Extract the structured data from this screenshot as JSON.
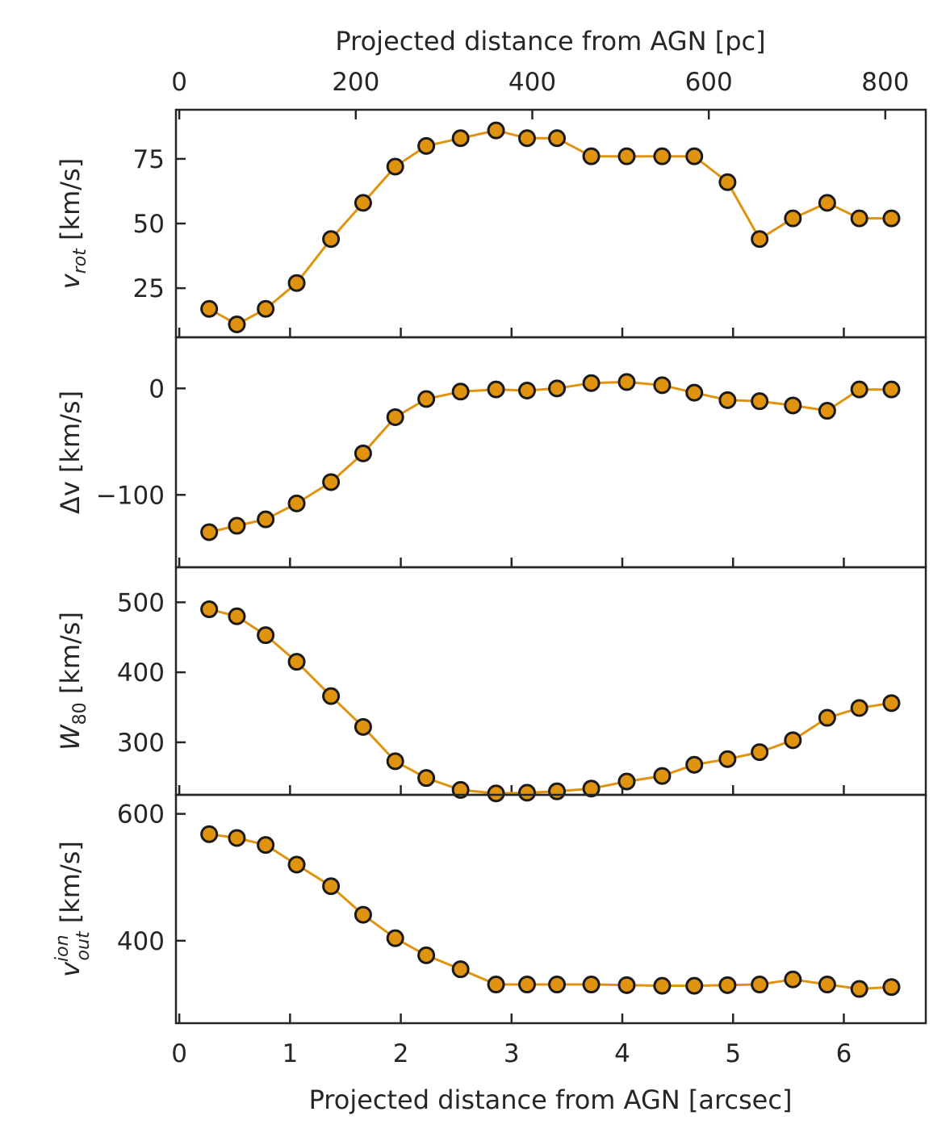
{
  "chart_data": {
    "type": "line",
    "colors": {
      "line": "#e0930f",
      "marker_fill": "#e0930f",
      "marker_edge": "#1a1a1a",
      "axes": "#262626"
    },
    "x_arcsec": [
      0.27,
      0.52,
      0.78,
      1.06,
      1.37,
      1.66,
      1.95,
      2.23,
      2.54,
      2.86,
      3.14,
      3.41,
      3.72,
      4.04,
      4.36,
      4.65,
      4.95,
      5.24,
      5.54,
      5.85,
      6.14,
      6.43
    ],
    "top_axis": {
      "label": "Projected distance from AGN [pc]",
      "ticks": [
        0,
        200,
        400,
        600,
        800
      ],
      "tick_labels": [
        "0",
        "200",
        "400",
        "600",
        "800"
      ],
      "pc_per_arcsec": 125.5
    },
    "bottom_axis": {
      "label": "Projected distance from AGN [arcsec]",
      "xlim": [
        -0.03,
        6.74
      ],
      "ticks": [
        0,
        1,
        2,
        3,
        4,
        5,
        6
      ],
      "tick_labels": [
        "0",
        "1",
        "2",
        "3",
        "4",
        "5",
        "6"
      ]
    },
    "panels": [
      {
        "name": "v_rot",
        "ylabel_main": "v",
        "ylabel_sub": "rot",
        "ylabel_sup": "",
        "ylabel_unit": " [km/s]",
        "ylim": [
          6,
          94
        ],
        "yticks": [
          25,
          50,
          75
        ],
        "ytick_labels": [
          "25",
          "50",
          "75"
        ],
        "values": [
          17,
          11,
          17,
          27,
          44,
          58,
          72,
          80,
          83,
          86,
          83,
          83,
          76,
          76,
          76,
          76,
          66,
          44,
          52,
          58,
          52,
          52
        ]
      },
      {
        "name": "delta_v",
        "ylabel_main": "Δv",
        "ylabel_sub": "",
        "ylabel_sup": "",
        "ylabel_unit": " [km/s]",
        "ylim": [
          -168,
          48
        ],
        "yticks": [
          -100,
          0
        ],
        "ytick_labels": [
          "−100",
          "0"
        ],
        "values": [
          -135,
          -129,
          -123,
          -108,
          -88,
          -61,
          -27,
          -10,
          -3,
          -1,
          -2,
          0,
          5,
          6,
          3,
          -4,
          -11,
          -12,
          -16,
          -21,
          -1,
          -1
        ]
      },
      {
        "name": "W80",
        "ylabel_main": "W",
        "ylabel_sub": "80",
        "ylabel_sup": "",
        "ylabel_unit": " [km/s]",
        "ylim": [
          225,
          550
        ],
        "yticks": [
          300,
          400,
          500
        ],
        "ytick_labels": [
          "300",
          "400",
          "500"
        ],
        "values": [
          490,
          480,
          453,
          415,
          366,
          322,
          273,
          249,
          232,
          227,
          228,
          230,
          234,
          244,
          252,
          268,
          276,
          286,
          303,
          335,
          349,
          356
        ]
      },
      {
        "name": "v_out_ion",
        "ylabel_main": "v",
        "ylabel_sub": "out",
        "ylabel_sup": "ion",
        "ylabel_unit": " [km/s]",
        "ylim": [
          270,
          630
        ],
        "yticks": [
          400,
          600
        ],
        "ytick_labels": [
          "400",
          "600"
        ],
        "values": [
          568,
          562,
          551,
          520,
          486,
          441,
          404,
          377,
          355,
          331,
          331,
          331,
          331,
          330,
          329,
          329,
          330,
          331,
          339,
          331,
          324,
          327
        ]
      }
    ]
  }
}
